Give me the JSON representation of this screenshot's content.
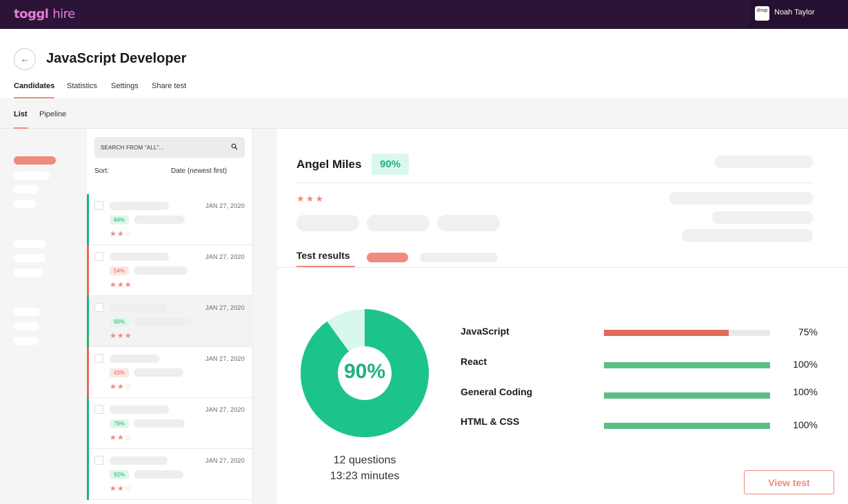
{
  "app": {
    "logo_main": "toggl",
    "logo_sub": "hire",
    "brand_color": "#e57cd8"
  },
  "user": {
    "avatar_text": "drop",
    "name": "Noah Taylor"
  },
  "header": {
    "back_icon": "arrow-left-icon",
    "back_glyph": "←",
    "title": "JavaScript Developer",
    "tabs": [
      "Candidates",
      "Statistics",
      "Settings",
      "Share test"
    ],
    "active_tab": "Candidates"
  },
  "subtabs": {
    "items": [
      "List",
      "Pipeline"
    ],
    "active": "List"
  },
  "search": {
    "placeholder": "SEARCH FROM \"ALL\"...",
    "icon": "search-icon"
  },
  "sort": {
    "label": "Sort:",
    "value": "Date (newest first)"
  },
  "candidates": [
    {
      "date": "JAN 27, 2020",
      "score": "84%",
      "status": "green",
      "stars": 2
    },
    {
      "date": "JAN 27, 2020",
      "score": "54%",
      "status": "red",
      "stars": 3
    },
    {
      "date": "JAN 27, 2020",
      "score": "90%",
      "status": "green",
      "stars": 3,
      "selected": true
    },
    {
      "date": "JAN 27, 2020",
      "score": "43%",
      "status": "red",
      "stars": 2
    },
    {
      "date": "JAN 27, 2020",
      "score": "79%",
      "status": "green",
      "stars": 2
    },
    {
      "date": "JAN 27, 2020",
      "score": "92%",
      "status": "green",
      "stars": 2
    }
  ],
  "detail": {
    "name": "Angel Miles",
    "score": "90%",
    "stars": 3,
    "results_tab": "Test results",
    "overall_percent": 90,
    "overall_label": "90%",
    "questions": "12 questions",
    "minutes": "13:23 minutes",
    "skills": [
      {
        "name": "JavaScript",
        "percent": 75,
        "label": "75%",
        "color": "#e06a5c"
      },
      {
        "name": "React",
        "percent": 100,
        "label": "100%",
        "color": "#5bbf85"
      },
      {
        "name": "General Coding",
        "percent": 100,
        "label": "100%",
        "color": "#5bbf85"
      },
      {
        "name": "HTML & CSS",
        "percent": 100,
        "label": "100%",
        "color": "#5bbf85"
      }
    ],
    "view_test_label": "View test"
  },
  "colors": {
    "accent": "#f08a7e",
    "green": "#1db27a",
    "red": "#e06a5c",
    "donut_main": "#1dc48a",
    "donut_light": "#d9f8ed"
  }
}
